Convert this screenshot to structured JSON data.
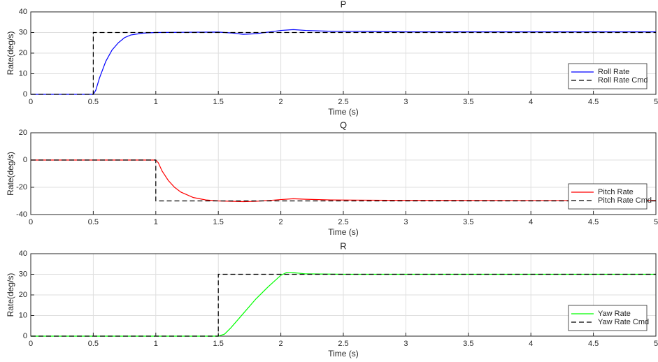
{
  "chart_data": [
    {
      "type": "line",
      "title": "P",
      "xlabel": "Time (s)",
      "ylabel": "Rate(deg/s)",
      "xlim": [
        0,
        5
      ],
      "xticks": [
        0,
        0.5,
        1,
        1.5,
        2,
        2.5,
        3,
        3.5,
        4,
        4.5,
        5
      ],
      "ylim": [
        0,
        40
      ],
      "yticks": [
        0,
        10,
        20,
        30,
        40
      ],
      "grid": true,
      "legend": "lower right",
      "series": [
        {
          "name": "Roll Rate",
          "color": "#0000ff",
          "linestyle": "solid",
          "x": [
            0,
            0.5,
            0.52,
            0.55,
            0.6,
            0.65,
            0.7,
            0.75,
            0.8,
            0.9,
            1.0,
            1.2,
            1.5,
            1.6,
            1.7,
            1.8,
            1.9,
            2.0,
            2.1,
            2.2,
            2.4,
            2.7,
            3,
            4,
            5
          ],
          "values": [
            0,
            0,
            2,
            8,
            16,
            21.5,
            25,
            27.5,
            28.8,
            29.7,
            30,
            30.1,
            30.2,
            29.8,
            29.1,
            29.4,
            30.2,
            31,
            31.4,
            31,
            30.6,
            30.5,
            30.3,
            30.3,
            30.3
          ]
        },
        {
          "name": "Roll Rate Cmd",
          "color": "#000000",
          "linestyle": "dashed",
          "x": [
            0,
            0.5,
            0.5,
            5
          ],
          "values": [
            0,
            0,
            30,
            30
          ]
        }
      ]
    },
    {
      "type": "line",
      "title": "Q",
      "xlabel": "Time (s)",
      "ylabel": "Rate(deg/s)",
      "xlim": [
        0,
        5
      ],
      "xticks": [
        0,
        0.5,
        1,
        1.5,
        2,
        2.5,
        3,
        3.5,
        4,
        4.5,
        5
      ],
      "ylim": [
        -40,
        20
      ],
      "yticks": [
        -40,
        -20,
        0,
        20
      ],
      "grid": true,
      "legend": "lower right",
      "series": [
        {
          "name": "Pitch Rate",
          "color": "#ff0000",
          "linestyle": "solid",
          "x": [
            0,
            1,
            1.02,
            1.05,
            1.1,
            1.15,
            1.2,
            1.3,
            1.4,
            1.5,
            1.7,
            1.8,
            1.9,
            2.0,
            2.1,
            2.2,
            2.4,
            3,
            4,
            5
          ],
          "values": [
            0,
            0,
            -2,
            -8,
            -15,
            -20,
            -23.5,
            -27.5,
            -29.3,
            -30,
            -30.5,
            -30.3,
            -29.7,
            -29,
            -28.4,
            -28.8,
            -29.3,
            -29.6,
            -29.7,
            -29.7
          ]
        },
        {
          "name": "Pitch Rate Cmd",
          "color": "#000000",
          "linestyle": "dashed",
          "x": [
            0,
            1,
            1,
            5
          ],
          "values": [
            0,
            0,
            -30,
            -30
          ]
        }
      ]
    },
    {
      "type": "line",
      "title": "R",
      "xlabel": "Time (s)",
      "ylabel": "Rate(deg/s)",
      "xlim": [
        0,
        5
      ],
      "xticks": [
        0,
        0.5,
        1,
        1.5,
        2,
        2.5,
        3,
        3.5,
        4,
        4.5,
        5
      ],
      "ylim": [
        0,
        40
      ],
      "yticks": [
        0,
        10,
        20,
        30,
        40
      ],
      "grid": true,
      "legend": "lower right",
      "series": [
        {
          "name": "Yaw Rate",
          "color": "#00ff00",
          "linestyle": "solid",
          "x": [
            0,
            1.5,
            1.55,
            1.6,
            1.7,
            1.8,
            1.9,
            2.0,
            2.05,
            2.1,
            2.2,
            2.5,
            5
          ],
          "values": [
            0,
            0,
            1,
            4,
            11,
            18,
            24,
            29.5,
            31,
            30.8,
            30.2,
            30,
            30
          ]
        },
        {
          "name": "Yaw Rate Cmd",
          "color": "#000000",
          "linestyle": "dashed",
          "x": [
            0,
            1.5,
            1.5,
            5
          ],
          "values": [
            0,
            0,
            30,
            30
          ]
        }
      ]
    }
  ]
}
